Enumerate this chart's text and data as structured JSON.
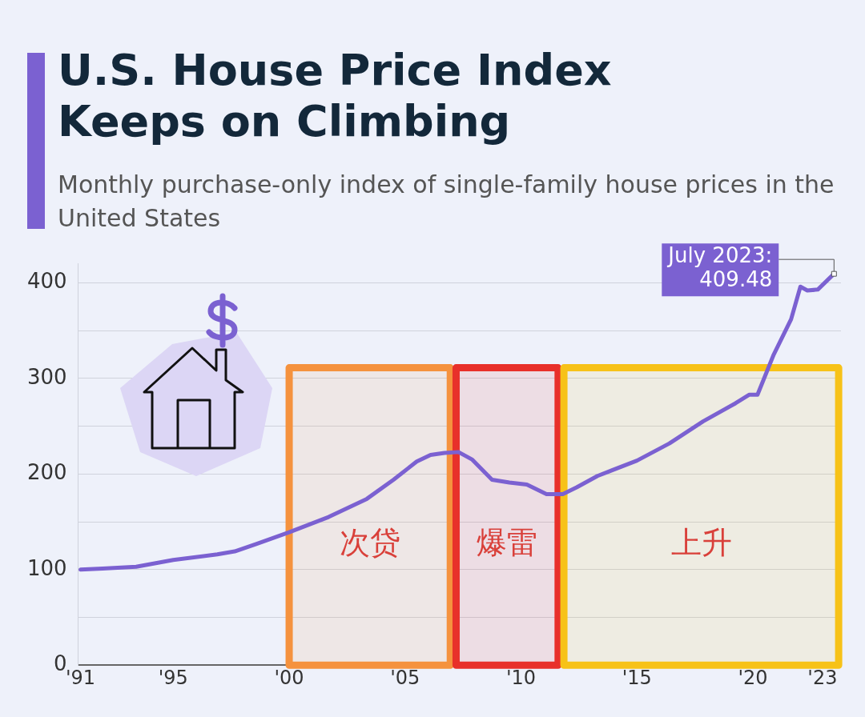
{
  "chart_data": {
    "type": "line",
    "title": "U.S. House Price Index Keeps on Climbing",
    "subtitle": "Monthly purchase-only index of single-family house prices in the United States",
    "x": [
      1991.0,
      1991.95,
      1993.4,
      1995.0,
      1996.9,
      1997.65,
      1998.6,
      2000.0,
      2001.7,
      2003.35,
      2004.5,
      2005.5,
      2006.1,
      2006.7,
      2007.3,
      2007.9,
      2008.75,
      2009.5,
      2010.25,
      2011.1,
      2011.8,
      2012.4,
      2013.3,
      2015.0,
      2016.4,
      2017.85,
      2019.25,
      2019.85,
      2020.2,
      2020.9,
      2021.65,
      2022.05,
      2022.35,
      2022.8,
      2023.5
    ],
    "series": [
      {
        "color": "#7b61d1",
        "values": [
          100,
          101,
          103,
          110,
          116,
          119,
          127,
          139,
          155,
          174,
          194,
          213,
          220,
          222,
          223,
          215,
          194,
          191,
          189,
          179,
          179,
          186,
          198,
          214,
          232,
          255,
          274,
          283,
          283,
          325,
          362,
          396,
          392,
          393,
          409.48
        ]
      }
    ],
    "xlim": [
      1990.9,
      2023.8
    ],
    "xticks": [
      {
        "value": 1991,
        "label": "'91"
      },
      {
        "value": 1995,
        "label": "'95"
      },
      {
        "value": 2000,
        "label": "'00"
      },
      {
        "value": 2005,
        "label": "'05"
      },
      {
        "value": 2010,
        "label": "'10"
      },
      {
        "value": 2015,
        "label": "'15"
      },
      {
        "value": 2020,
        "label": "'20"
      },
      {
        "value": 2023,
        "label": "'23"
      }
    ],
    "ylim": [
      0,
      420
    ],
    "yticks": [
      0,
      {
        "value": 50,
        "label": null
      },
      100,
      {
        "value": 150,
        "label": null
      },
      200,
      {
        "value": 250,
        "label": null
      },
      300,
      {
        "value": 350,
        "label": null
      },
      400
    ],
    "grid": "y",
    "legend": false,
    "marker": "none",
    "line_style": "solid",
    "bands": [
      {
        "axis": "x",
        "from": 2000.0,
        "to": 2006.95,
        "label": "次贷",
        "color": "#f5923e"
      },
      {
        "axis": "x",
        "from": 2007.2,
        "to": 2011.6,
        "label": "爆雷",
        "color": "#e8302a"
      },
      {
        "axis": "x",
        "from": 2011.85,
        "to": 2023.7,
        "label": "上升",
        "color": "#f7c218"
      }
    ],
    "annotations": [
      {
        "text": "July 2023: 409.48",
        "x": 2023.5,
        "y": 409.48
      }
    ]
  }
}
